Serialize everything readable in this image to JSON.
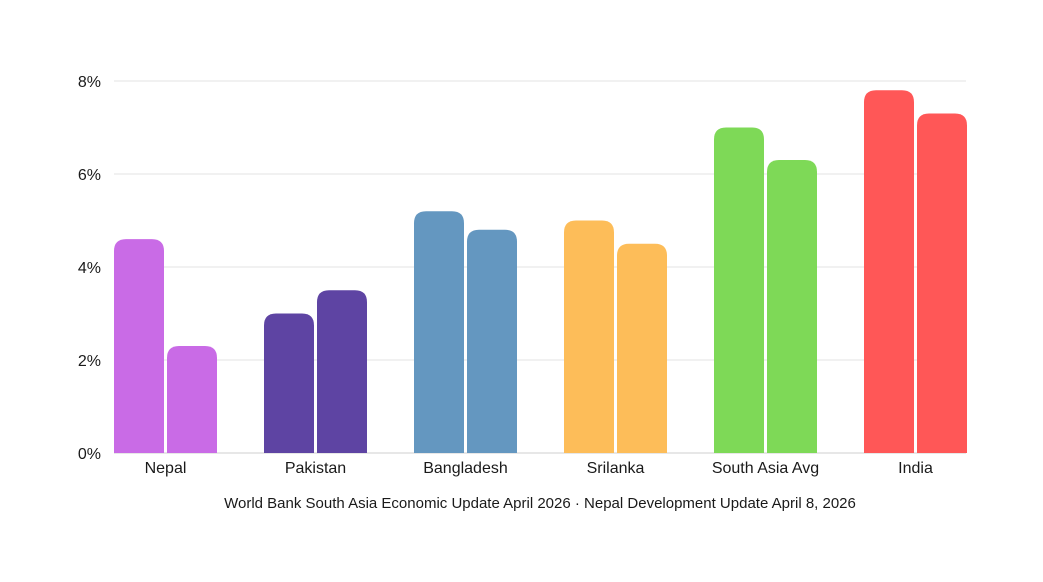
{
  "chart_data": {
    "type": "bar",
    "categories": [
      "Nepal",
      "Pakistan",
      "Bangladesh",
      "Srilanka",
      "South Asia Avg",
      "India"
    ],
    "series": [
      {
        "values": [
          4.6,
          3.0,
          5.2,
          5.0,
          7.0,
          7.8
        ]
      },
      {
        "values": [
          2.3,
          3.5,
          4.8,
          4.5,
          6.3,
          7.3
        ]
      }
    ],
    "category_colors": [
      "#c96be6",
      "#5e44a3",
      "#6497c0",
      "#fdbd59",
      "#7ed957",
      "#ff5757"
    ],
    "ylim": [
      0,
      8
    ],
    "yticks": [
      0,
      2,
      4,
      6,
      8
    ],
    "ytick_labels": [
      "0%",
      "2%",
      "4%",
      "6%",
      "8%"
    ],
    "grid": true,
    "title": "",
    "xlabel": "",
    "ylabel": ""
  },
  "source_note": "World Bank South Asia Economic Update April 2026 · Nepal Development Update April 8, 2026"
}
